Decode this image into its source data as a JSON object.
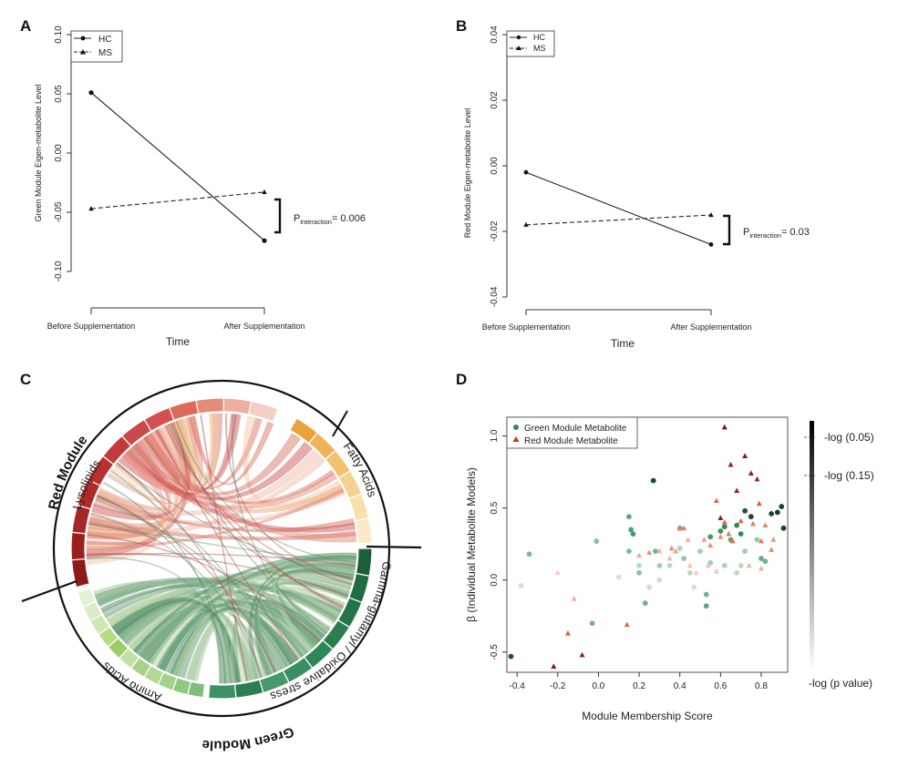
{
  "panels": {
    "A": "A",
    "B": "B",
    "C": "C",
    "D": "D"
  },
  "chart_data": [
    {
      "id": "A",
      "type": "line",
      "ylabel": "Green Module Eigen-metabolite Level",
      "xlabel": "Time",
      "categories": [
        "Before Supplementation",
        "After Supplementation"
      ],
      "yticks": [
        "-0.10",
        "-0.05",
        "0.00",
        "0.05",
        "0.10"
      ],
      "ylim": [
        -0.1,
        0.1
      ],
      "series": [
        {
          "name": "HC",
          "marker": "circle",
          "linestyle": "solid",
          "values": [
            0.051,
            -0.074
          ]
        },
        {
          "name": "MS",
          "marker": "triangle",
          "linestyle": "dashed",
          "values": [
            -0.047,
            -0.033
          ]
        }
      ],
      "p_label": "P",
      "p_sub": "interaction",
      "p_value": "= 0.006"
    },
    {
      "id": "B",
      "type": "line",
      "ylabel": "Red Module Eigen-metabolite Level",
      "xlabel": "Time",
      "categories": [
        "Before Supplementation",
        "After Supplementation"
      ],
      "yticks": [
        "-0.04",
        "-0.02",
        "0.00",
        "0.02",
        "0.04"
      ],
      "ylim": [
        -0.04,
        0.04
      ],
      "series": [
        {
          "name": "HC",
          "marker": "circle",
          "linestyle": "solid",
          "values": [
            -0.002,
            -0.024
          ]
        },
        {
          "name": "MS",
          "marker": "triangle",
          "linestyle": "dashed",
          "values": [
            -0.018,
            -0.015
          ]
        }
      ],
      "p_label": "P",
      "p_sub": "interaction",
      "p_value": "= 0.03"
    },
    {
      "id": "C",
      "type": "chord",
      "modules": [
        "Red Module",
        "Green Module"
      ],
      "groups": [
        "Lysolipids",
        "Fatty Acids",
        "Gamma-glutamyl / Oxidative stress",
        "Amino Acids"
      ]
    },
    {
      "id": "D",
      "type": "scatter",
      "xlabel": "Module Membership Score",
      "ylabel": "β (Individual Metabolite Models)",
      "xticks": [
        "-0.4",
        "-0.2",
        "0.0",
        "0.2",
        "0.4",
        "0.6",
        "0.8"
      ],
      "yticks": [
        "-0.5",
        "0.0",
        "0.5",
        "1.0"
      ],
      "xlim": [
        -0.45,
        0.93
      ],
      "ylim": [
        -0.64,
        1.13
      ],
      "legend": [
        "Green Module Metabolite",
        "Red Module Metabolite"
      ],
      "colorbar_labels": [
        "-log (0.05)",
        "-log (0.15)",
        "-log (p value)"
      ],
      "green": [
        [
          -0.43,
          -0.53,
          0.85
        ],
        [
          -0.34,
          0.18,
          0.45
        ],
        [
          -0.03,
          -0.3,
          0.5
        ],
        [
          -0.01,
          0.27,
          0.4
        ],
        [
          0.15,
          0.44,
          0.6
        ],
        [
          0.16,
          0.35,
          0.65
        ],
        [
          0.17,
          0.32,
          0.7
        ],
        [
          0.15,
          0.2,
          0.45
        ],
        [
          0.2,
          0.05,
          0.4
        ],
        [
          0.23,
          -0.16,
          0.5
        ],
        [
          0.27,
          0.69,
          0.9
        ],
        [
          0.28,
          0.2,
          0.5
        ],
        [
          0.3,
          0.1,
          0.3
        ],
        [
          0.4,
          0.36,
          0.5
        ],
        [
          0.42,
          0.15,
          0.35
        ],
        [
          0.53,
          -0.18,
          0.6
        ],
        [
          0.53,
          -0.1,
          0.5
        ],
        [
          0.55,
          0.3,
          0.7
        ],
        [
          0.6,
          0.34,
          0.75
        ],
        [
          0.62,
          0.37,
          0.8
        ],
        [
          0.65,
          0.28,
          0.6
        ],
        [
          0.68,
          0.38,
          0.8
        ],
        [
          0.7,
          0.32,
          0.8
        ],
        [
          0.72,
          0.48,
          0.85
        ],
        [
          0.75,
          0.44,
          0.9
        ],
        [
          0.8,
          0.15,
          0.55
        ],
        [
          0.82,
          0.13,
          0.5
        ],
        [
          0.85,
          0.46,
          0.9
        ],
        [
          0.88,
          0.47,
          0.95
        ],
        [
          0.9,
          0.51,
          0.9
        ],
        [
          0.91,
          0.36,
          0.95
        ],
        [
          0.55,
          0.12,
          0.3
        ],
        [
          0.45,
          0.05,
          0.2
        ],
        [
          0.35,
          0.1,
          0.2
        ],
        [
          0.62,
          0.1,
          0.25
        ],
        [
          0.72,
          0.2,
          0.3
        ],
        [
          0.78,
          0.28,
          0.35
        ],
        [
          0.3,
          0.0,
          0.15
        ],
        [
          0.25,
          -0.05,
          0.15
        ],
        [
          0.1,
          0.02,
          0.1
        ],
        [
          0.47,
          -0.05,
          0.12
        ],
        [
          -0.38,
          -0.04,
          0.12
        ],
        [
          0.68,
          0.05,
          0.2
        ],
        [
          0.5,
          0.2,
          0.3
        ],
        [
          0.4,
          0.22,
          0.25
        ],
        [
          0.2,
          0.1,
          0.2
        ],
        [
          0.7,
          0.1,
          0.2
        ]
      ],
      "red": [
        [
          -0.22,
          -0.6,
          0.9
        ],
        [
          -0.15,
          -0.37,
          0.75
        ],
        [
          -0.08,
          -0.52,
          0.85
        ],
        [
          -0.12,
          -0.13,
          0.3
        ],
        [
          -0.2,
          0.05,
          0.15
        ],
        [
          0.14,
          -0.31,
          0.7
        ],
        [
          0.2,
          0.17,
          0.35
        ],
        [
          0.25,
          0.19,
          0.45
        ],
        [
          0.3,
          0.2,
          0.3
        ],
        [
          0.35,
          0.15,
          0.25
        ],
        [
          0.38,
          0.2,
          0.4
        ],
        [
          0.4,
          0.36,
          0.55
        ],
        [
          0.42,
          0.36,
          0.6
        ],
        [
          0.45,
          0.1,
          0.2
        ],
        [
          0.48,
          0.05,
          0.15
        ],
        [
          0.55,
          0.24,
          0.5
        ],
        [
          0.58,
          0.55,
          0.7
        ],
        [
          0.6,
          0.43,
          0.85
        ],
        [
          0.62,
          1.06,
          0.95
        ],
        [
          0.65,
          0.8,
          0.85
        ],
        [
          0.68,
          0.62,
          0.8
        ],
        [
          0.7,
          0.41,
          0.7
        ],
        [
          0.72,
          0.86,
          0.9
        ],
        [
          0.75,
          0.74,
          0.85
        ],
        [
          0.78,
          0.7,
          0.8
        ],
        [
          0.79,
          0.53,
          0.75
        ],
        [
          0.76,
          0.39,
          0.6
        ],
        [
          0.8,
          0.27,
          0.6
        ],
        [
          0.82,
          0.38,
          0.55
        ],
        [
          0.85,
          0.21,
          0.5
        ],
        [
          0.86,
          0.28,
          0.45
        ],
        [
          0.52,
          0.28,
          0.4
        ],
        [
          0.54,
          0.1,
          0.2
        ],
        [
          0.6,
          0.3,
          0.5
        ],
        [
          0.66,
          0.27,
          0.65
        ],
        [
          0.74,
          0.1,
          0.25
        ],
        [
          0.8,
          0.08,
          0.3
        ],
        [
          0.58,
          0.06,
          0.2
        ],
        [
          0.44,
          0.28,
          0.3
        ],
        [
          0.36,
          0.22,
          0.5
        ],
        [
          0.62,
          0.4,
          0.7
        ],
        [
          0.64,
          0.32,
          0.6
        ]
      ]
    }
  ],
  "colors": {
    "green": "#1b7a4a",
    "red": "#b22222",
    "dark_red": "#8b1a1a",
    "orange": "#e8a33c",
    "light_green": "#a8d08d"
  }
}
